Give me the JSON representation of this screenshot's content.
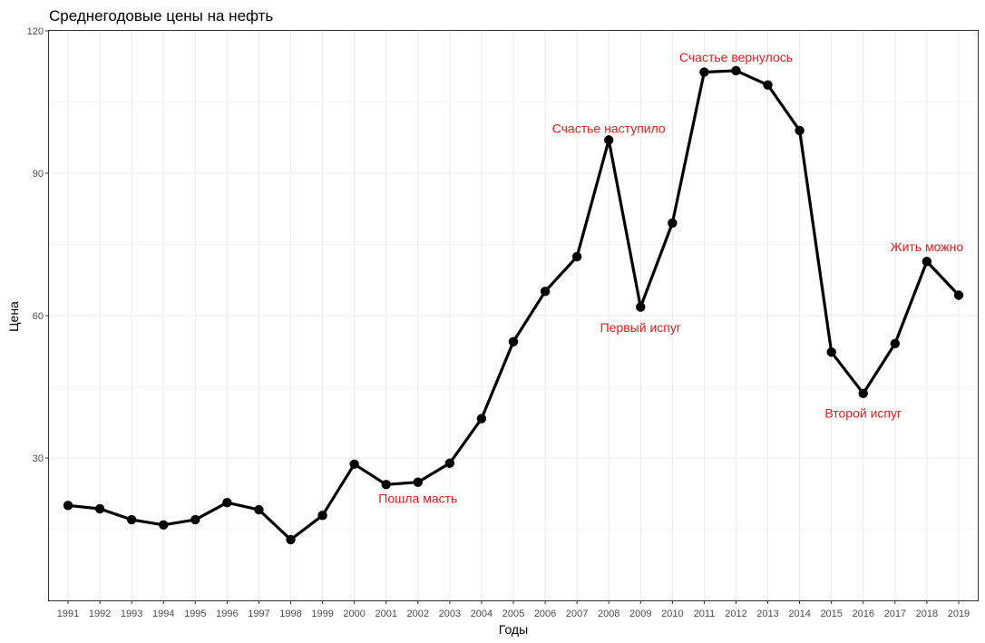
{
  "chart_data": {
    "type": "line",
    "title": "Среднегодовые цены на нефть",
    "xlabel": "Годы",
    "ylabel": "Цена",
    "ylim": [
      0,
      120
    ],
    "yticks": [
      30,
      60,
      90,
      120
    ],
    "grid": true,
    "x": [
      "1991",
      "1992",
      "1993",
      "1994",
      "1995",
      "1996",
      "1997",
      "1998",
      "1999",
      "2000",
      "2001",
      "2002",
      "2003",
      "2004",
      "2005",
      "2006",
      "2007",
      "2008",
      "2009",
      "2010",
      "2011",
      "2012",
      "2013",
      "2014",
      "2015",
      "2016",
      "2017",
      "2018",
      "2019"
    ],
    "values": [
      20.0,
      19.3,
      17.0,
      15.9,
      17.0,
      20.6,
      19.1,
      12.8,
      17.9,
      28.7,
      24.4,
      24.9,
      28.9,
      38.3,
      54.5,
      65.1,
      72.4,
      97.0,
      61.8,
      79.5,
      111.3,
      111.6,
      108.6,
      99.0,
      52.3,
      43.6,
      54.1,
      71.4,
      64.3
    ],
    "annotations": [
      {
        "text": "Пошла масть",
        "x": "2002",
        "y": 21.5,
        "color": "#e41a1c"
      },
      {
        "text": "Счастье наступило",
        "x": "2008",
        "y": 99.5,
        "color": "#e41a1c"
      },
      {
        "text": "Первый испуг",
        "x": "2009",
        "y": 57.5,
        "color": "#e41a1c"
      },
      {
        "text": "Счастье вернулось",
        "x": "2012",
        "y": 114.5,
        "color": "#e41a1c"
      },
      {
        "text": "Второй испуг",
        "x": "2016",
        "y": 39.5,
        "color": "#e41a1c"
      },
      {
        "text": "Жить можно",
        "x": "2018",
        "y": 74.5,
        "color": "#e41a1c"
      }
    ]
  }
}
